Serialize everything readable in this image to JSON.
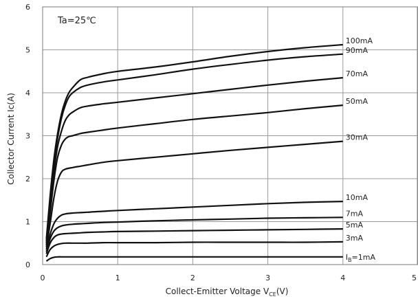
{
  "chart_data": {
    "type": "line",
    "annotation": "Ta=25℃",
    "xlabel_main": "Collect-Emitter Voltage  V",
    "xlabel_sub": "CE",
    "xlabel_tail": "(V)",
    "ylabel": "Collector Current  Ic(A)",
    "xlim": [
      0,
      5
    ],
    "ylim": [
      0,
      6
    ],
    "x_ticks": [
      "0",
      "1",
      "2",
      "3",
      "4",
      "5"
    ],
    "y_ticks": [
      "0",
      "1",
      "2",
      "3",
      "4",
      "5",
      "6"
    ],
    "grid": true,
    "legend": "inline labels at line ends",
    "series": [
      {
        "name": "100mA",
        "x": [
          0.05,
          0.1,
          0.15,
          0.2,
          0.25,
          0.3,
          0.35,
          0.4,
          0.5,
          0.6,
          0.8,
          1,
          1.5,
          2,
          2.5,
          3,
          3.5,
          4
        ],
        "y": [
          0.6,
          1.6,
          2.45,
          3.05,
          3.5,
          3.8,
          4.0,
          4.12,
          4.3,
          4.36,
          4.44,
          4.5,
          4.6,
          4.72,
          4.85,
          4.96,
          5.05,
          5.12
        ]
      },
      {
        "name": "90mA",
        "x": [
          0.05,
          0.1,
          0.15,
          0.2,
          0.25,
          0.3,
          0.35,
          0.4,
          0.5,
          0.6,
          0.8,
          1,
          1.5,
          2,
          2.5,
          3,
          3.5,
          4
        ],
        "y": [
          0.55,
          1.5,
          2.35,
          2.95,
          3.4,
          3.7,
          3.9,
          4.0,
          4.12,
          4.18,
          4.25,
          4.3,
          4.42,
          4.55,
          4.66,
          4.76,
          4.84,
          4.9
        ]
      },
      {
        "name": "70mA",
        "x": [
          0.05,
          0.1,
          0.15,
          0.2,
          0.25,
          0.3,
          0.35,
          0.4,
          0.5,
          0.6,
          0.8,
          1,
          1.5,
          2,
          2.5,
          3,
          3.5,
          4
        ],
        "y": [
          0.5,
          1.35,
          2.15,
          2.75,
          3.1,
          3.35,
          3.48,
          3.55,
          3.65,
          3.69,
          3.74,
          3.78,
          3.88,
          3.98,
          4.08,
          4.18,
          4.27,
          4.35
        ]
      },
      {
        "name": "50mA",
        "x": [
          0.05,
          0.1,
          0.15,
          0.2,
          0.25,
          0.3,
          0.35,
          0.4,
          0.5,
          0.6,
          0.8,
          1,
          1.5,
          2,
          2.5,
          3,
          3.5,
          4
        ],
        "y": [
          0.45,
          1.2,
          1.95,
          2.5,
          2.78,
          2.92,
          2.98,
          3.0,
          3.05,
          3.08,
          3.13,
          3.18,
          3.28,
          3.38,
          3.46,
          3.54,
          3.63,
          3.71
        ]
      },
      {
        "name": "30mA",
        "x": [
          0.05,
          0.1,
          0.15,
          0.2,
          0.25,
          0.3,
          0.4,
          0.5,
          0.6,
          0.8,
          1,
          1.5,
          2,
          2.5,
          3,
          3.5,
          4
        ],
        "y": [
          0.4,
          0.95,
          1.55,
          1.95,
          2.15,
          2.22,
          2.26,
          2.29,
          2.32,
          2.38,
          2.42,
          2.5,
          2.58,
          2.66,
          2.73,
          2.8,
          2.87
        ]
      },
      {
        "name": "10mA",
        "x": [
          0.05,
          0.1,
          0.15,
          0.2,
          0.25,
          0.3,
          0.4,
          0.5,
          0.6,
          0.8,
          1,
          1.5,
          2,
          2.5,
          3,
          3.5,
          4
        ],
        "y": [
          0.35,
          0.7,
          0.95,
          1.08,
          1.15,
          1.18,
          1.2,
          1.21,
          1.22,
          1.24,
          1.26,
          1.3,
          1.34,
          1.38,
          1.42,
          1.45,
          1.47
        ]
      },
      {
        "name": "7mA",
        "x": [
          0.05,
          0.1,
          0.15,
          0.2,
          0.25,
          0.3,
          0.4,
          0.5,
          0.6,
          0.8,
          1,
          1.5,
          2,
          2.5,
          3,
          3.5,
          4
        ],
        "y": [
          0.3,
          0.6,
          0.78,
          0.86,
          0.9,
          0.92,
          0.94,
          0.95,
          0.96,
          0.98,
          0.99,
          1.02,
          1.04,
          1.06,
          1.08,
          1.09,
          1.1
        ]
      },
      {
        "name": "5mA",
        "x": [
          0.05,
          0.1,
          0.15,
          0.2,
          0.25,
          0.3,
          0.4,
          0.5,
          0.6,
          0.8,
          1,
          1.5,
          2,
          2.5,
          3,
          3.5,
          4
        ],
        "y": [
          0.25,
          0.5,
          0.63,
          0.69,
          0.71,
          0.72,
          0.73,
          0.74,
          0.75,
          0.76,
          0.77,
          0.78,
          0.79,
          0.8,
          0.81,
          0.82,
          0.83
        ]
      },
      {
        "name": "3mA",
        "x": [
          0.05,
          0.1,
          0.15,
          0.2,
          0.25,
          0.3,
          0.4,
          0.5,
          0.6,
          0.8,
          1,
          1.5,
          2,
          2.5,
          3,
          3.5,
          4
        ],
        "y": [
          0.18,
          0.35,
          0.43,
          0.47,
          0.49,
          0.5,
          0.5,
          0.5,
          0.5,
          0.51,
          0.51,
          0.51,
          0.52,
          0.52,
          0.52,
          0.52,
          0.53
        ]
      },
      {
        "name_prefix": "I",
        "name_sub": "B",
        "name_suffix": "=1mA",
        "x": [
          0.05,
          0.1,
          0.15,
          0.2,
          0.25,
          0.3,
          0.4,
          0.5,
          0.6,
          0.8,
          1,
          1.5,
          2,
          2.5,
          3,
          3.5,
          4
        ],
        "y": [
          0.08,
          0.14,
          0.17,
          0.18,
          0.18,
          0.18,
          0.18,
          0.18,
          0.18,
          0.18,
          0.18,
          0.18,
          0.18,
          0.18,
          0.18,
          0.18,
          0.18
        ]
      }
    ]
  }
}
